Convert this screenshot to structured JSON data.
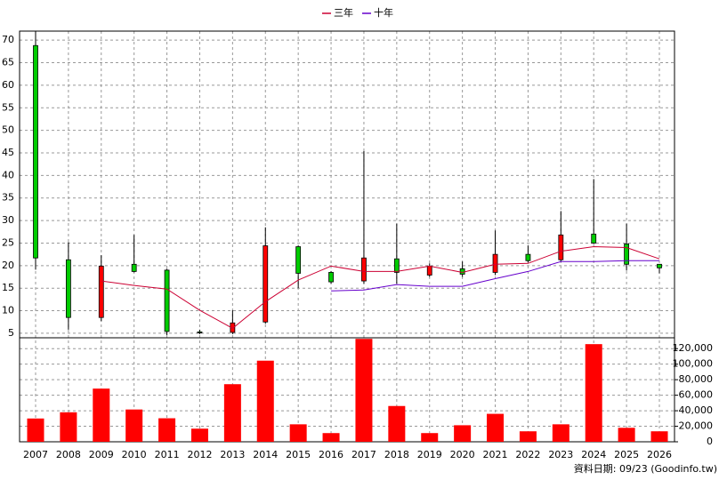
{
  "chart_data": {
    "type": "candlestick",
    "categories": [
      "2007",
      "2008",
      "2009",
      "2010",
      "2011",
      "2012",
      "2013",
      "2014",
      "2015",
      "2016",
      "2017",
      "2018",
      "2019",
      "2020",
      "2021",
      "2022",
      "2023",
      "2024",
      "2025",
      "2026"
    ],
    "open": [
      68.8,
      21.3,
      8.5,
      20.3,
      19.0,
      5.3,
      5.2,
      7.5,
      24.2,
      18.5,
      16.6,
      21.5,
      17.9,
      19.3,
      18.5,
      22.5,
      21.3,
      27.0,
      24.8,
      20.3
    ],
    "high": [
      72,
      25.2,
      22.3,
      26.8,
      19.3,
      5.8,
      10.1,
      28.5,
      24.4,
      18.8,
      45.4,
      29.3,
      20.5,
      20.9,
      27.8,
      24.4,
      32.1,
      39.2,
      29.3,
      20.3
    ],
    "low": [
      19.1,
      5.8,
      7.7,
      18.5,
      4.6,
      4.8,
      4.8,
      7.1,
      15.0,
      16.0,
      16.0,
      16.0,
      17.5,
      17.5,
      17.9,
      20.7,
      20.9,
      24.8,
      18.9,
      18.3
    ],
    "close": [
      21.7,
      8.5,
      19.9,
      18.7,
      5.4,
      5.2,
      7.3,
      24.4,
      18.3,
      16.4,
      21.7,
      18.5,
      19.9,
      18.1,
      22.5,
      21.1,
      26.8,
      25.0,
      20.3,
      19.5
    ],
    "up_color": "#ff0000",
    "down_color": "#00cc00",
    "series": [
      {
        "name": "三年",
        "color": "#cc0033",
        "values": [
          null,
          null,
          16.6,
          15.6,
          14.8,
          10.1,
          6.1,
          12.0,
          16.8,
          19.9,
          18.7,
          18.7,
          19.9,
          18.5,
          20.3,
          20.5,
          23.2,
          24.2,
          24.0,
          21.5
        ]
      },
      {
        "name": "十年",
        "color": "#6600cc",
        "values": [
          null,
          null,
          null,
          null,
          null,
          null,
          null,
          null,
          null,
          14.4,
          14.6,
          15.8,
          15.4,
          15.4,
          17.1,
          18.7,
          20.9,
          20.9,
          21.1,
          21.1
        ]
      }
    ],
    "ylim": [
      4,
      72
    ],
    "yticks": [
      5,
      10,
      15,
      20,
      25,
      30,
      35,
      40,
      45,
      50,
      55,
      60,
      65,
      70
    ],
    "grid": true,
    "volume": {
      "type": "bar",
      "color": "#ff0000",
      "values": [
        30000,
        38000,
        68500,
        41600,
        30300,
        16900,
        74200,
        104500,
        22500,
        11200,
        132600,
        46100,
        11200,
        21300,
        36000,
        13500,
        22500,
        125800,
        18000,
        13500
      ],
      "ylim": [
        0,
        134000
      ],
      "yticks": [
        0,
        {
          "value": 20000,
          "label": "20,000"
        },
        {
          "value": 40000,
          "label": "40,000"
        },
        {
          "value": 60000,
          "label": "60,000"
        },
        {
          "value": 80000,
          "label": "80,000"
        },
        {
          "value": 100000,
          "label": "100,000"
        },
        {
          "value": 120000,
          "label": "120,000"
        }
      ]
    },
    "note": "資料日期: 09/23 (Goodinfo.tw)"
  }
}
